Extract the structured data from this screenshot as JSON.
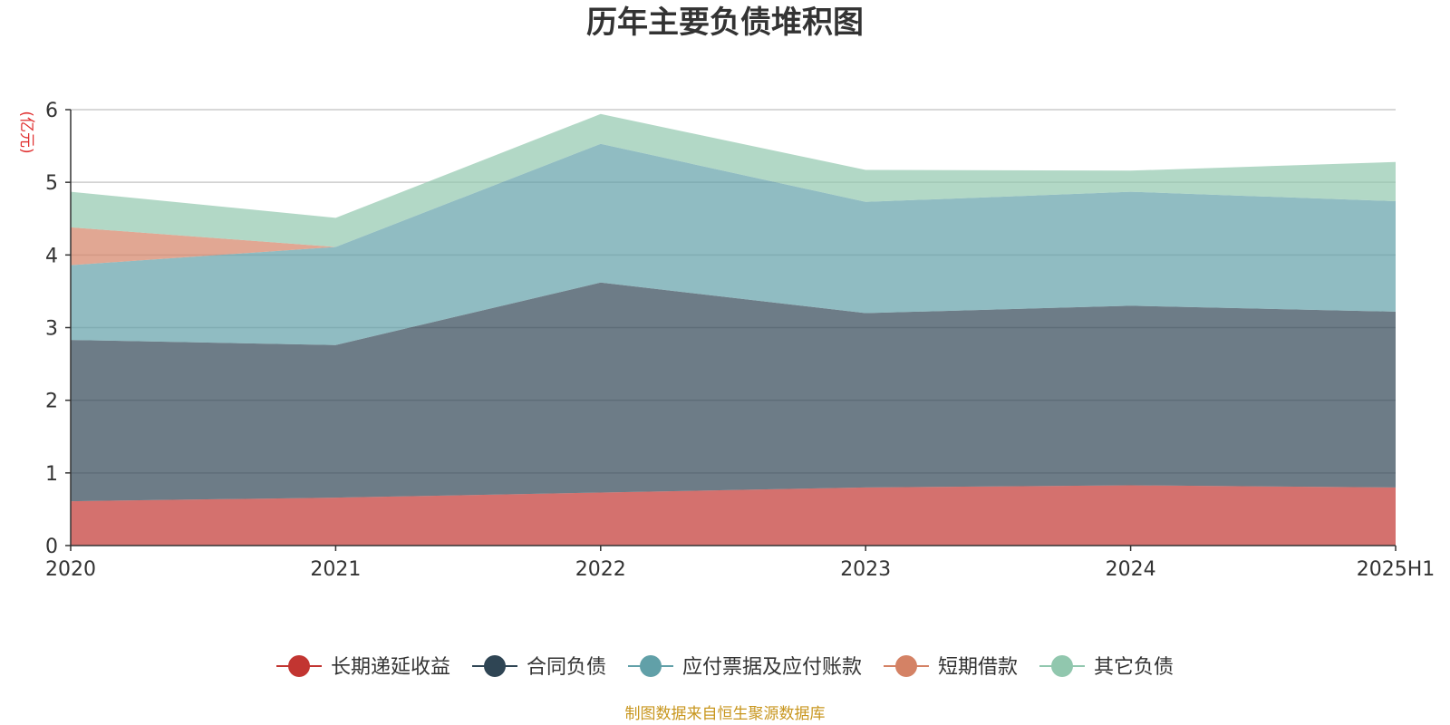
{
  "chart_data": {
    "type": "area",
    "stacked": true,
    "title": "历年主要负债堆积图",
    "unit_label": "(亿元)",
    "categories": [
      "2020",
      "2021",
      "2022",
      "2023",
      "2024",
      "2025H1"
    ],
    "ylim": [
      0,
      6
    ],
    "yticks": [
      "0",
      "1",
      "2",
      "3",
      "4",
      "5",
      "6"
    ],
    "grid": true,
    "legend_position": "bottom",
    "series": [
      {
        "name": "长期递延收益",
        "color": "#c23531",
        "values": [
          0.61,
          0.66,
          0.73,
          0.8,
          0.83,
          0.8
        ]
      },
      {
        "name": "合同负债",
        "color": "#2f4554",
        "values": [
          2.22,
          2.1,
          2.89,
          2.4,
          2.47,
          2.42
        ]
      },
      {
        "name": "应付票据及应付账款",
        "color": "#61a0a8",
        "values": [
          1.03,
          1.35,
          1.91,
          1.53,
          1.57,
          1.52
        ]
      },
      {
        "name": "短期借款",
        "color": "#d48265",
        "values": [
          0.52,
          0.0,
          0.0,
          0.0,
          0.0,
          0.0
        ]
      },
      {
        "name": "其它负债",
        "color": "#91c7ae",
        "values": [
          0.49,
          0.4,
          0.41,
          0.44,
          0.29,
          0.54
        ]
      }
    ]
  },
  "footer": {
    "source": "制图数据来自恒生聚源数据库"
  }
}
